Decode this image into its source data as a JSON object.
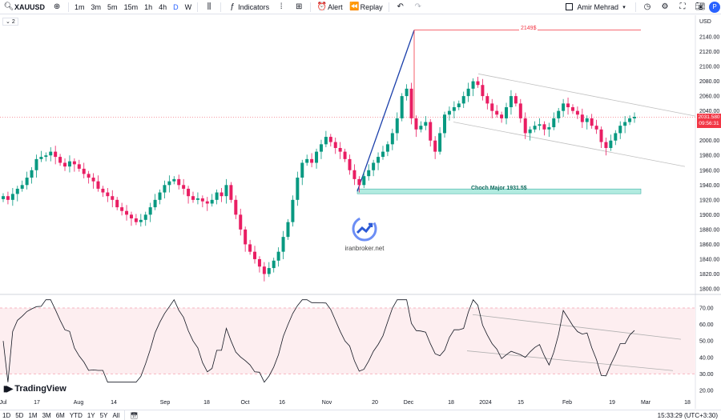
{
  "toolbar": {
    "symbol": "XAUUSD",
    "intervals": [
      "1m",
      "3m",
      "5m",
      "15m",
      "1h",
      "4h",
      "D",
      "W"
    ],
    "active_interval": "D",
    "indicators_label": "Indicators",
    "alert_label": "Alert",
    "replay_label": "Replay",
    "user_name": "Amir Mehrad",
    "avatar_letter": "P"
  },
  "chart": {
    "collapse_count": "2",
    "currency": "USD",
    "price_axis": [
      "2140.00",
      "2120.00",
      "2100.00",
      "2080.00",
      "2060.00",
      "2040.00",
      "2020.00",
      "2000.00",
      "1980.00",
      "1960.00",
      "1940.00",
      "1920.00",
      "1900.00",
      "1880.00",
      "1860.00",
      "1840.00",
      "1820.00",
      "1800.00"
    ],
    "current_price": "2031.580",
    "countdown": "09:56:31",
    "high_label": "2149$",
    "choch_label": "Choch Major 1931.5$",
    "watermark_text": "iranbroker.net",
    "brand": "TradingView",
    "rsi_axis": [
      "70.00",
      "60.00",
      "50.00",
      "40.00",
      "30.00",
      "20.00"
    ],
    "time_axis": [
      "Jul",
      "17",
      "Aug",
      "14",
      "Sep",
      "18",
      "Oct",
      "16",
      "Nov",
      "20",
      "Dec",
      "18",
      "2024",
      "15",
      "Feb",
      "19",
      "Mar",
      "18"
    ]
  },
  "chart_data": {
    "type": "candlestick",
    "symbol": "XAUUSD",
    "price_range": [
      1800,
      2150
    ],
    "rsi_range": [
      20,
      75
    ],
    "closes": [
      1925,
      1920,
      1928,
      1935,
      1940,
      1950,
      1960,
      1975,
      1978,
      1980,
      1985,
      1978,
      1970,
      1965,
      1972,
      1968,
      1962,
      1955,
      1950,
      1945,
      1935,
      1930,
      1925,
      1920,
      1910,
      1905,
      1900,
      1895,
      1890,
      1893,
      1900,
      1910,
      1920,
      1930,
      1940,
      1945,
      1948,
      1940,
      1935,
      1925,
      1920,
      1922,
      1918,
      1915,
      1920,
      1930,
      1925,
      1940,
      1920,
      1900,
      1880,
      1860,
      1850,
      1840,
      1830,
      1820,
      1828,
      1838,
      1850,
      1870,
      1890,
      1920,
      1950,
      1970,
      1975,
      1970,
      1985,
      1995,
      2005,
      1998,
      1990,
      1985,
      1975,
      1960,
      1948,
      1940,
      1952,
      1960,
      1970,
      1978,
      1985,
      1995,
      2010,
      2030,
      2060,
      2070,
      2030,
      2015,
      2020,
      2025,
      2000,
      1985,
      2010,
      2035,
      2040,
      2045,
      2050,
      2060,
      2070,
      2080,
      2075,
      2060,
      2050,
      2040,
      2035,
      2030,
      2045,
      2060,
      2050,
      2030,
      2010,
      2015,
      2020,
      2022,
      2015,
      2018,
      2030,
      2040,
      2050,
      2045,
      2040,
      2035,
      2025,
      2030,
      2020,
      2015,
      1998,
      1990,
      2000,
      2010,
      2020,
      2025,
      2030,
      2032
    ],
    "high_level": 2149,
    "choch_level": 1931.5,
    "current": 2031.58
  }
}
